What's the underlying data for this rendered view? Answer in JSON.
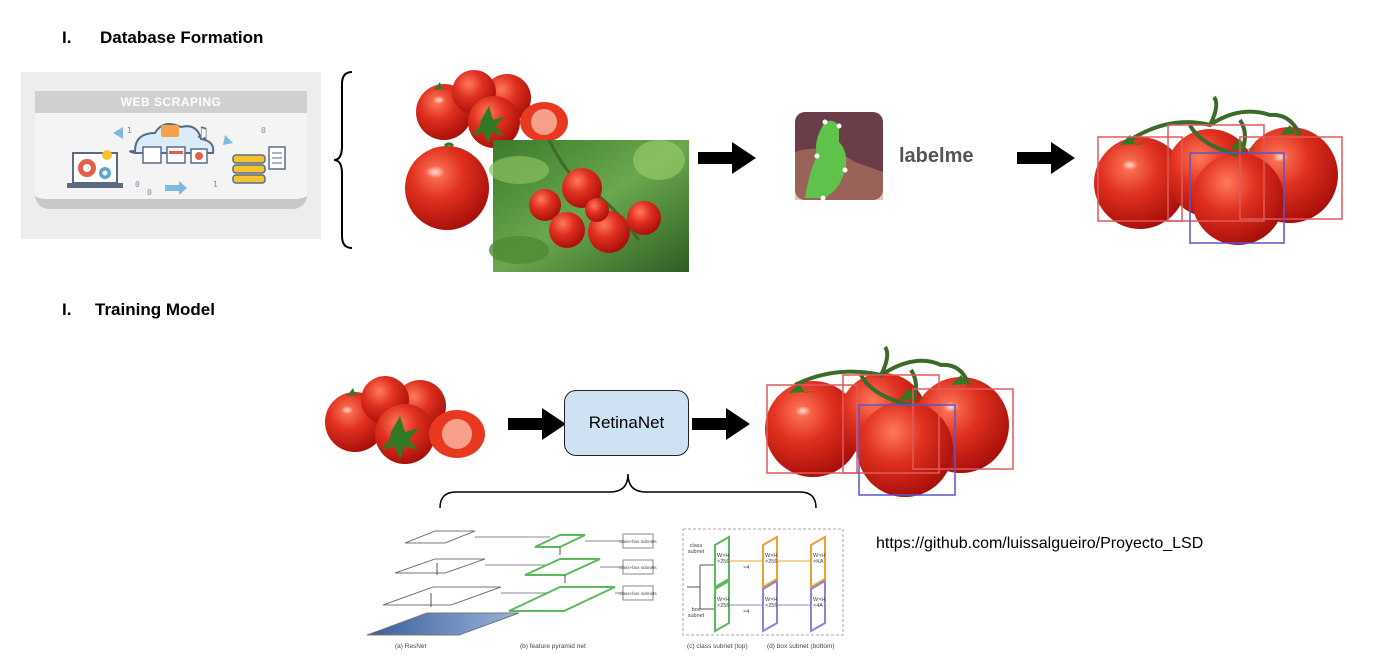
{
  "sections": [
    {
      "number": "I.",
      "title": "Database Formation"
    },
    {
      "number": "I.",
      "title": "Training Model"
    }
  ],
  "web_scraping": {
    "banner": "WEB SCRAPING"
  },
  "labelme": {
    "name": "labelme"
  },
  "model": {
    "name": "RetinaNet"
  },
  "repo_url": "https://github.com/luissalgueiro/Proyecto_LSD",
  "architecture": {
    "captions": [
      "(a) ResNet",
      "(b) feature pyramid net",
      "(c) class subnet (top)",
      "(d) box subnet (bottom)"
    ],
    "subnet_tag": "class+box subnets",
    "class_subnet_label": "class subnet",
    "box_subnet_label": "box subnet",
    "block_labels": [
      "W×H ×256",
      "×4",
      "W×H ×256",
      "W×H ×KA",
      "W×H ×256",
      "×4",
      "W×H ×256",
      "W×H ×4A"
    ]
  },
  "colors": {
    "tomato": "#d8261b",
    "red_box": "#e05a5a",
    "blue_box": "#5a55c8",
    "model_box": "#cfe2f3",
    "fpn_green": "#5cb85c",
    "class_orange": "#f0a030",
    "box_purple": "#8a85d8"
  }
}
